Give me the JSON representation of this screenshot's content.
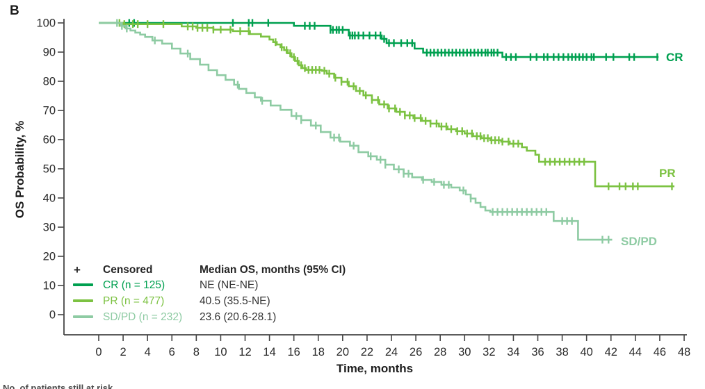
{
  "panel_label": "B",
  "legend": {
    "censored_symbol": "+",
    "censored_label": "Censored",
    "median_header": "Median OS, months (95% CI)"
  },
  "footer": {
    "clipped_text": "No. of patients still at risk"
  },
  "chart_data": {
    "type": "line",
    "subtype": "kaplan-meier-step",
    "title": "",
    "xlabel": "Time, months",
    "ylabel": "OS Probability, %",
    "xlim": [
      0,
      48
    ],
    "ylim": [
      0,
      100
    ],
    "x_ticks": [
      0,
      2,
      4,
      6,
      8,
      10,
      12,
      14,
      16,
      18,
      20,
      22,
      24,
      26,
      28,
      30,
      32,
      34,
      36,
      38,
      40,
      42,
      44,
      46,
      48
    ],
    "y_ticks": [
      0,
      10,
      20,
      30,
      40,
      50,
      60,
      70,
      80,
      90,
      100
    ],
    "grid": false,
    "legend_position": "inside-lower-left",
    "axis_color": "#454545",
    "series": [
      {
        "name": "CR",
        "n": 125,
        "legend_label": "CR (n = 125)",
        "median_text": "NE (NE-NE)",
        "end_label": "CR",
        "color": "#00a050",
        "points": [
          [
            0,
            100
          ],
          [
            16,
            100
          ],
          [
            16,
            99
          ],
          [
            19,
            99
          ],
          [
            19,
            97.6
          ],
          [
            20.5,
            97.6
          ],
          [
            20.5,
            95.7
          ],
          [
            23.2,
            95.7
          ],
          [
            23.2,
            94.5
          ],
          [
            23.6,
            94.5
          ],
          [
            23.6,
            93.1
          ],
          [
            25.9,
            93.1
          ],
          [
            25.9,
            91.2
          ],
          [
            26.6,
            91.2
          ],
          [
            26.6,
            89.8
          ],
          [
            33.1,
            89.8
          ],
          [
            33.1,
            88.3
          ],
          [
            45.9,
            88.3
          ]
        ],
        "censor_times": [
          2.5,
          2.9,
          11.0,
          12.3,
          12.6,
          13.9,
          16.9,
          17.3,
          17.7,
          19.0,
          19.2,
          19.5,
          19.7,
          20.0,
          20.6,
          20.8,
          21.0,
          21.3,
          21.7,
          22.2,
          22.7,
          23.1,
          23.4,
          23.8,
          24.2,
          24.8,
          25.3,
          25.7,
          26.9,
          27.2,
          27.5,
          27.8,
          28.1,
          28.4,
          28.7,
          29.0,
          29.3,
          29.6,
          29.9,
          30.2,
          30.5,
          30.8,
          31.1,
          31.4,
          31.7,
          31.9,
          32.2,
          32.4,
          32.7,
          33.4,
          33.8,
          34.2,
          35.4,
          35.9,
          36.5,
          36.8,
          37.3,
          37.7,
          38.1,
          38.5,
          38.8,
          39.1,
          39.4,
          39.7,
          40.0,
          40.4,
          40.6,
          41.6,
          42.2,
          43.5,
          43.9,
          45.8
        ]
      },
      {
        "name": "PR",
        "n": 477,
        "legend_label": "PR (n = 477)",
        "median_text": "40.5 (35.5-NE)",
        "end_label": "PR",
        "color": "#7cc242",
        "points": [
          [
            0,
            100
          ],
          [
            2,
            100
          ],
          [
            2,
            99.6
          ],
          [
            6.8,
            99.6
          ],
          [
            6.8,
            98.8
          ],
          [
            8,
            98.8
          ],
          [
            8,
            98.3
          ],
          [
            9.4,
            98.3
          ],
          [
            9.4,
            97.7
          ],
          [
            11,
            97.7
          ],
          [
            11,
            97.2
          ],
          [
            12.4,
            97.2
          ],
          [
            12.4,
            96.2
          ],
          [
            13.3,
            96.2
          ],
          [
            13.3,
            95.3
          ],
          [
            14,
            95.3
          ],
          [
            14,
            94.3
          ],
          [
            14.3,
            93.4
          ],
          [
            14.6,
            92.6
          ],
          [
            14.9,
            91.7
          ],
          [
            15.2,
            90.7
          ],
          [
            15.5,
            89.6
          ],
          [
            15.8,
            88.3
          ],
          [
            16.1,
            87
          ],
          [
            16.4,
            85.5
          ],
          [
            16.7,
            84.5
          ],
          [
            17,
            83.9
          ],
          [
            18.3,
            83.6
          ],
          [
            18.7,
            82.6
          ],
          [
            19.3,
            81.2
          ],
          [
            19.9,
            79.8
          ],
          [
            20.5,
            78.3
          ],
          [
            21.1,
            76.7
          ],
          [
            21.7,
            75.2
          ],
          [
            22.4,
            73.6
          ],
          [
            23,
            72.1
          ],
          [
            23.7,
            70.7
          ],
          [
            24.4,
            69.5
          ],
          [
            25.1,
            68.3
          ],
          [
            25.8,
            67.4
          ],
          [
            26.5,
            66.4
          ],
          [
            27.2,
            65.5
          ],
          [
            27.9,
            64.5
          ],
          [
            28.6,
            63.6
          ],
          [
            29.3,
            62.9
          ],
          [
            30,
            62.1
          ],
          [
            30.7,
            61.2
          ],
          [
            31.4,
            60.5
          ],
          [
            32.1,
            59.8
          ],
          [
            33,
            59.3
          ],
          [
            33.7,
            58.6
          ],
          [
            34.7,
            57.4
          ],
          [
            35.1,
            56.2
          ],
          [
            35.8,
            54.8
          ],
          [
            36.1,
            52.4
          ],
          [
            40.7,
            52.4
          ],
          [
            40.7,
            44
          ],
          [
            47.2,
            44
          ]
        ],
        "censor_times": [
          1.7,
          2.1,
          2.8,
          3.2,
          4.0,
          5.3,
          7.3,
          7.7,
          8.1,
          8.5,
          8.9,
          9.4,
          10.0,
          10.8,
          11.6,
          12.3,
          14.5,
          15.0,
          15.4,
          15.7,
          16.0,
          16.3,
          16.6,
          16.9,
          17.2,
          17.5,
          17.8,
          18.1,
          18.5,
          18.9,
          19.4,
          19.9,
          20.4,
          20.9,
          21.4,
          21.9,
          22.4,
          22.9,
          23.4,
          23.8,
          24.3,
          24.7,
          25.1,
          25.5,
          25.9,
          26.4,
          26.8,
          27.2,
          27.7,
          28.1,
          28.5,
          28.9,
          29.4,
          29.8,
          30.2,
          30.6,
          31.0,
          31.3,
          31.6,
          31.9,
          32.2,
          32.5,
          32.8,
          33.1,
          33.6,
          34.0,
          34.4,
          36.6,
          37.0,
          37.4,
          37.8,
          38.2,
          38.6,
          39.0,
          39.4,
          39.8,
          41.8,
          42.7,
          43.2,
          43.8,
          44.2,
          47.0
        ]
      },
      {
        "name": "SD/PD",
        "n": 232,
        "legend_label": "SD/PD (n = 232)",
        "median_text": "23.6 (20.6-28.1)",
        "end_label": "SD/PD",
        "color": "#8ecba3",
        "points": [
          [
            0,
            100
          ],
          [
            1.8,
            100
          ],
          [
            1.8,
            99
          ],
          [
            2.2,
            98.1
          ],
          [
            2.6,
            97.4
          ],
          [
            3,
            96.7
          ],
          [
            3.4,
            96
          ],
          [
            3.8,
            95.2
          ],
          [
            4.4,
            94
          ],
          [
            5.2,
            92.9
          ],
          [
            6,
            91.2
          ],
          [
            6.7,
            89.5
          ],
          [
            7.5,
            87.6
          ],
          [
            8.3,
            85.7
          ],
          [
            9,
            83.8
          ],
          [
            9.7,
            82.1
          ],
          [
            10.4,
            80.5
          ],
          [
            11.1,
            78.8
          ],
          [
            11.5,
            77.4
          ],
          [
            12.1,
            76
          ],
          [
            12.8,
            74.5
          ],
          [
            13.3,
            73.3
          ],
          [
            14.1,
            71.7
          ],
          [
            14.9,
            70.2
          ],
          [
            15.8,
            68.1
          ],
          [
            16.6,
            66.7
          ],
          [
            17.4,
            64.8
          ],
          [
            18.2,
            62.6
          ],
          [
            19,
            60.7
          ],
          [
            19.8,
            59.3
          ],
          [
            20.6,
            57.9
          ],
          [
            21.3,
            55.7
          ],
          [
            22.1,
            54.3
          ],
          [
            22.8,
            53.1
          ],
          [
            23.5,
            51.4
          ],
          [
            24.2,
            49.8
          ],
          [
            25,
            48.3
          ],
          [
            25.7,
            47.1
          ],
          [
            26.5,
            46.2
          ],
          [
            27.3,
            45.5
          ],
          [
            28.1,
            44.5
          ],
          [
            28.9,
            43.6
          ],
          [
            29.6,
            42.6
          ],
          [
            30.1,
            41.2
          ],
          [
            30.5,
            39.8
          ],
          [
            30.9,
            38.3
          ],
          [
            31.3,
            36.9
          ],
          [
            31.7,
            35.7
          ],
          [
            32.1,
            35.2
          ],
          [
            37.3,
            35.2
          ],
          [
            37.3,
            32.1
          ],
          [
            39.3,
            32.1
          ],
          [
            39.3,
            25.7
          ],
          [
            42.1,
            25.7
          ]
        ],
        "censor_times": [
          1.5,
          1.9,
          2.3,
          4.6,
          7.3,
          11.4,
          13.4,
          16.2,
          16.6,
          17.8,
          19.3,
          19.7,
          20.9,
          22.3,
          23.1,
          23.5,
          24.6,
          25.0,
          25.4,
          26.6,
          27.5,
          28.3,
          28.7,
          29.9,
          30.5,
          32.3,
          32.7,
          33.1,
          33.5,
          33.9,
          34.3,
          34.7,
          35.1,
          35.5,
          35.9,
          36.3,
          36.7,
          38.0,
          38.4,
          38.8,
          41.3,
          41.8
        ]
      }
    ]
  }
}
